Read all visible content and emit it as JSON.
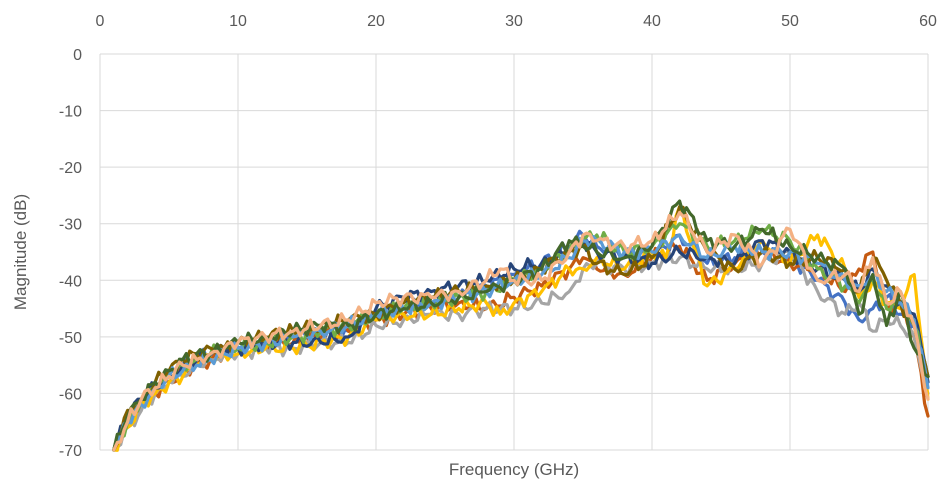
{
  "chart_data": {
    "type": "line",
    "title": "",
    "xlabel": "Frequency (GHz)",
    "ylabel": "Magnitude (dB)",
    "xlim": [
      0,
      60
    ],
    "ylim": [
      -70,
      0
    ],
    "x_ticks": [
      "0",
      "10",
      "20",
      "30",
      "40",
      "50",
      "60"
    ],
    "y_ticks": [
      "0",
      "-10",
      "-20",
      "-30",
      "-40",
      "-50",
      "-60",
      "-70"
    ],
    "x_axis_position": "top",
    "grid": true,
    "legend": "none",
    "series": [
      {
        "color": "#4472c4",
        "x": [
          1,
          2,
          3,
          4,
          5,
          6,
          7,
          8,
          9,
          10,
          12,
          14,
          16,
          18,
          20,
          22,
          24,
          26,
          28,
          30,
          32,
          34,
          35,
          36,
          38,
          40,
          42,
          44,
          46,
          48,
          50,
          52,
          54,
          55,
          56,
          57,
          58,
          59,
          60
        ],
        "y": [
          -70,
          -64,
          -61,
          -59,
          -57,
          -55,
          -54,
          -53,
          -52,
          -52,
          -51,
          -50,
          -49,
          -49,
          -46,
          -45,
          -44,
          -43,
          -41,
          -39,
          -37,
          -34,
          -32,
          -34,
          -35,
          -36,
          -32,
          -37,
          -36,
          -35,
          -36,
          -40,
          -44,
          -47,
          -45,
          -43,
          -46,
          -48,
          -57
        ]
      },
      {
        "color": "#c55a11",
        "x": [
          1,
          2,
          3,
          4,
          5,
          6,
          7,
          8,
          9,
          10,
          12,
          14,
          16,
          18,
          20,
          22,
          24,
          26,
          28,
          30,
          32,
          34,
          35,
          36,
          38,
          40,
          42,
          44,
          46,
          48,
          50,
          52,
          54,
          55,
          56,
          57,
          58,
          59,
          60
        ],
        "y": [
          -70,
          -65,
          -62,
          -60,
          -58,
          -56,
          -55,
          -54,
          -53,
          -52,
          -51,
          -51,
          -50,
          -49,
          -47,
          -46,
          -45,
          -44,
          -45,
          -43,
          -41,
          -38,
          -36,
          -38,
          -39,
          -36,
          -34,
          -40,
          -37,
          -35,
          -37,
          -38,
          -42,
          -38,
          -35,
          -45,
          -44,
          -50,
          -64
        ]
      },
      {
        "color": "#a5a5a5",
        "x": [
          1,
          2,
          3,
          4,
          5,
          6,
          7,
          8,
          9,
          10,
          12,
          14,
          16,
          18,
          20,
          22,
          24,
          26,
          28,
          30,
          32,
          34,
          35,
          36,
          38,
          40,
          42,
          44,
          46,
          48,
          50,
          52,
          54,
          55,
          56,
          57,
          58,
          59,
          60
        ],
        "y": [
          -70,
          -66,
          -63,
          -60,
          -58,
          -57,
          -55,
          -54,
          -53,
          -53,
          -52,
          -52,
          -51,
          -51,
          -48,
          -47,
          -46,
          -46,
          -45,
          -45,
          -44,
          -42,
          -38,
          -37,
          -38,
          -37,
          -36,
          -38,
          -38,
          -37,
          -35,
          -42,
          -46,
          -44,
          -49,
          -47,
          -48,
          -50,
          -60
        ]
      },
      {
        "color": "#ffc000",
        "x": [
          1,
          2,
          3,
          4,
          5,
          6,
          7,
          8,
          9,
          10,
          12,
          14,
          16,
          18,
          20,
          22,
          24,
          26,
          28,
          29,
          30,
          32,
          34,
          35,
          36,
          38,
          40,
          41,
          42,
          43,
          44,
          46,
          48,
          50,
          52,
          54,
          55,
          56,
          57,
          58,
          59,
          60
        ],
        "y": [
          -70,
          -66,
          -62,
          -60,
          -58,
          -57,
          -55,
          -54,
          -53,
          -53,
          -52,
          -52,
          -51,
          -50,
          -47,
          -46,
          -46,
          -45,
          -44,
          -46,
          -44,
          -42,
          -38,
          -38,
          -36,
          -38,
          -35,
          -36,
          -27,
          -34,
          -41,
          -38,
          -33,
          -37,
          -32,
          -38,
          -43,
          -40,
          -44,
          -45,
          -39,
          -61
        ]
      },
      {
        "color": "#264478",
        "x": [
          1,
          2,
          3,
          4,
          5,
          6,
          7,
          8,
          9,
          10,
          12,
          14,
          16,
          18,
          20,
          22,
          24,
          26,
          28,
          30,
          32,
          34,
          35,
          36,
          38,
          40,
          42,
          44,
          46,
          48,
          50,
          52,
          54,
          55,
          56,
          57,
          58,
          59,
          60
        ],
        "y": [
          -70,
          -64,
          -61,
          -59,
          -57,
          -55,
          -54,
          -53,
          -52,
          -52,
          -51,
          -51,
          -51,
          -50,
          -45,
          -43,
          -42,
          -41,
          -40,
          -38,
          -37,
          -35,
          -33,
          -35,
          -36,
          -37,
          -35,
          -36,
          -37,
          -33,
          -35,
          -38,
          -40,
          -42,
          -38,
          -41,
          -44,
          -46,
          -58
        ]
      },
      {
        "color": "#70ad47",
        "x": [
          1,
          2,
          3,
          4,
          5,
          6,
          7,
          8,
          9,
          10,
          12,
          14,
          16,
          18,
          20,
          22,
          24,
          26,
          28,
          30,
          32,
          34,
          35,
          36,
          38,
          40,
          42,
          44,
          46,
          48,
          50,
          52,
          54,
          55,
          56,
          57,
          58,
          59,
          60
        ],
        "y": [
          -70,
          -65,
          -61,
          -59,
          -57,
          -55,
          -54,
          -53,
          -52,
          -52,
          -51,
          -50,
          -49,
          -48,
          -46,
          -45,
          -44,
          -43,
          -42,
          -40,
          -38,
          -35,
          -33,
          -32,
          -35,
          -34,
          -30,
          -34,
          -33,
          -31,
          -33,
          -38,
          -41,
          -44,
          -40,
          -45,
          -42,
          -48,
          -57
        ]
      },
      {
        "color": "#7f6000",
        "x": [
          1,
          2,
          3,
          4,
          5,
          6,
          7,
          8,
          9,
          10,
          12,
          14,
          16,
          18,
          20,
          22,
          24,
          26,
          28,
          30,
          32,
          33,
          34,
          35,
          36,
          38,
          40,
          42,
          44,
          46,
          48,
          50,
          52,
          54,
          55,
          56,
          57,
          58,
          59,
          60
        ],
        "y": [
          -70,
          -63,
          -61,
          -58,
          -56,
          -54,
          -53,
          -52,
          -52,
          -51,
          -50,
          -49,
          -48,
          -47,
          -46,
          -44,
          -43,
          -42,
          -41,
          -40,
          -38,
          -36,
          -35,
          -34,
          -37,
          -39,
          -36,
          -27,
          -35,
          -38,
          -35,
          -37,
          -36,
          -38,
          -42,
          -36,
          -40,
          -44,
          -48,
          -57
        ]
      },
      {
        "color": "#5b9bd5",
        "x": [
          1,
          2,
          3,
          4,
          5,
          6,
          7,
          8,
          9,
          10,
          12,
          14,
          16,
          18,
          20,
          22,
          24,
          26,
          28,
          30,
          32,
          34,
          35,
          36,
          38,
          40,
          42,
          44,
          46,
          48,
          50,
          52,
          54,
          55,
          56,
          57,
          58,
          59,
          60
        ],
        "y": [
          -70,
          -65,
          -62,
          -59,
          -57,
          -56,
          -55,
          -54,
          -53,
          -52,
          -51,
          -50,
          -49,
          -48,
          -46,
          -45,
          -44,
          -43,
          -42,
          -40,
          -39,
          -36,
          -33,
          -33,
          -35,
          -35,
          -32,
          -36,
          -34,
          -35,
          -35,
          -37,
          -40,
          -41,
          -39,
          -42,
          -44,
          -47,
          -59
        ]
      },
      {
        "color": "#43682b",
        "x": [
          1,
          2,
          3,
          4,
          5,
          6,
          7,
          8,
          9,
          10,
          12,
          14,
          16,
          18,
          20,
          22,
          24,
          26,
          28,
          30,
          32,
          34,
          35,
          36,
          38,
          40,
          42,
          44,
          46,
          48,
          50,
          52,
          54,
          55,
          56,
          57,
          58,
          59,
          60
        ],
        "y": [
          -70,
          -64,
          -61,
          -58,
          -56,
          -54,
          -53,
          -53,
          -52,
          -51,
          -50,
          -49,
          -48,
          -48,
          -46,
          -45,
          -44,
          -43,
          -42,
          -40,
          -38,
          -33,
          -34,
          -35,
          -36,
          -34,
          -26,
          -33,
          -34,
          -31,
          -34,
          -36,
          -38,
          -46,
          -39,
          -48,
          -42,
          -52,
          -57
        ]
      },
      {
        "color": "#f4b183",
        "x": [
          1,
          2,
          3,
          4,
          5,
          6,
          7,
          8,
          9,
          10,
          12,
          14,
          16,
          18,
          20,
          22,
          24,
          26,
          28,
          29,
          30,
          32,
          34,
          35,
          36,
          38,
          40,
          42,
          44,
          46,
          48,
          50,
          52,
          54,
          55,
          56,
          57,
          58,
          59,
          60
        ],
        "y": [
          -70,
          -65,
          -61,
          -59,
          -57,
          -55,
          -54,
          -53,
          -52,
          -51,
          -50,
          -49,
          -48,
          -47,
          -44,
          -43,
          -43,
          -42,
          -40,
          -38,
          -40,
          -40,
          -35,
          -32,
          -33,
          -34,
          -33,
          -28,
          -35,
          -32,
          -37,
          -31,
          -40,
          -39,
          -42,
          -36,
          -44,
          -42,
          -48,
          -61
        ]
      }
    ]
  }
}
